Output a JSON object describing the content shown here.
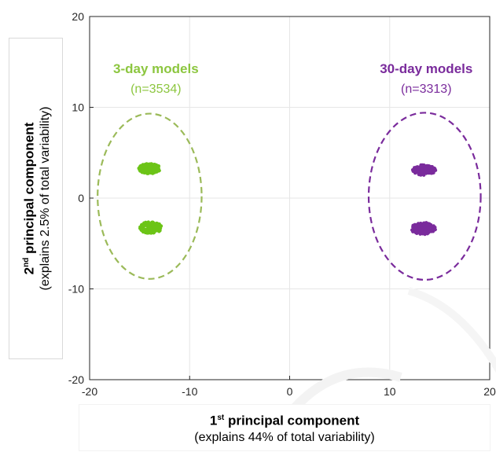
{
  "chart_data": {
    "type": "scatter",
    "xlabel": "1st principal component",
    "xlabel_main": "principal component",
    "xlabel_ordinal": "1",
    "xlabel_sup": "st",
    "xlabel_sub": "(explains 44% of total variability)",
    "ylabel": "2nd principal component",
    "ylabel_main": "principal component",
    "ylabel_ordinal": "2",
    "ylabel_sup": "nd",
    "ylabel_sub": "(explains 2.5% of total variability)",
    "xlim": [
      -20,
      20
    ],
    "ylim": [
      -20,
      20
    ],
    "xticks": [
      "-20",
      "-10",
      "0",
      "10",
      "20"
    ],
    "yticks": [
      "20",
      "10",
      "0",
      "-10",
      "-20"
    ],
    "grid": true,
    "series": [
      {
        "name": "3-day models",
        "count_label": "(n=3534)",
        "color": "#6cc417",
        "ellipse_color": "#9bba59",
        "clusters": [
          {
            "x": [
              -15.1,
              -12.9
            ],
            "y": [
              2.7,
              3.8
            ]
          },
          {
            "x": [
              -15.0,
              -12.8
            ],
            "y": [
              -3.9,
              -2.6
            ]
          }
        ],
        "ellipse": {
          "cx": -14.0,
          "cy": 0.2,
          "rx": 5.2,
          "ry": 9.1
        }
      },
      {
        "name": "30-day models",
        "count_label": "(n=3313)",
        "color": "#7a2b9c",
        "ellipse_color": "#7a2b9c",
        "clusters": [
          {
            "x": [
              12.3,
              14.6
            ],
            "y": [
              2.5,
              3.7
            ]
          },
          {
            "x": [
              12.1,
              14.6
            ],
            "y": [
              -4.0,
              -2.7
            ]
          }
        ],
        "ellipse": {
          "cx": 13.5,
          "cy": 0.2,
          "rx": 5.6,
          "ry": 9.2
        }
      }
    ]
  }
}
